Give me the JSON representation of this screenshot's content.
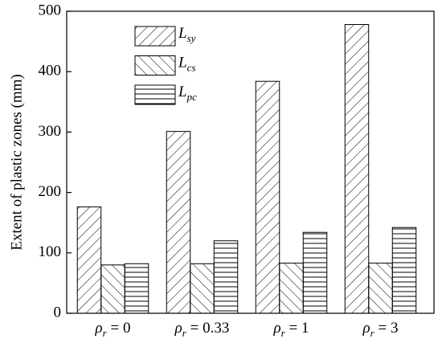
{
  "chart_data": {
    "type": "bar",
    "y_label": "Extent of plastic zones (mm)",
    "categories": [
      "ρr = 0",
      "ρr = 0.33",
      "ρr = 1",
      "ρr = 3"
    ],
    "series": [
      {
        "name": "Lsy",
        "color": "#000000",
        "values": [
          176,
          301,
          384,
          478
        ]
      },
      {
        "name": "Lcs",
        "color": "#000000",
        "values": [
          80,
          82,
          83,
          83
        ]
      },
      {
        "name": "Lpc",
        "color": "#000000",
        "values": [
          82,
          120,
          134,
          142
        ]
      }
    ],
    "ylim": [
      0,
      500
    ],
    "yticks": [
      0,
      100,
      200,
      300,
      400,
      500
    ]
  }
}
